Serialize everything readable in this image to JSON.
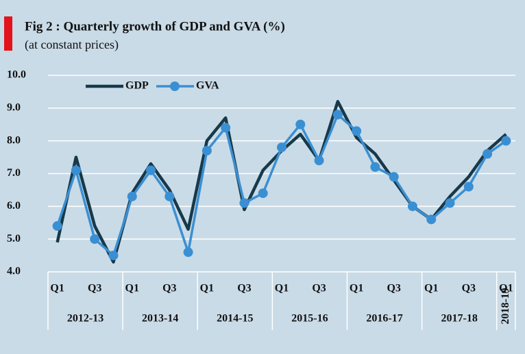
{
  "chart_data": {
    "type": "line",
    "title": "Fig 2 : Quarterly growth of GDP and GVA (%)",
    "subtitle": "(at constant prices)",
    "categories": [
      "Q1",
      null,
      "Q3",
      null,
      "Q1",
      null,
      "Q3",
      null,
      "Q1",
      null,
      "Q3",
      null,
      "Q1",
      null,
      "Q3",
      null,
      "Q1",
      null,
      "Q3",
      null,
      "Q1",
      null,
      "Q3",
      null,
      "Q1"
    ],
    "groups": [
      "2012-13",
      "2013-14",
      "2014-15",
      "2015-16",
      "2016-17",
      "2017-18",
      "2018-19"
    ],
    "series": [
      {
        "name": "GDP",
        "color": "#17394a",
        "values": [
          4.9,
          7.5,
          5.4,
          4.3,
          6.4,
          7.3,
          6.5,
          5.3,
          8.0,
          8.7,
          5.9,
          7.1,
          7.7,
          8.2,
          7.4,
          9.2,
          8.1,
          7.6,
          6.8,
          6.0,
          5.6,
          6.3,
          6.9,
          7.7,
          8.2
        ]
      },
      {
        "name": "GVA",
        "color": "#3a8fd3",
        "values": [
          5.4,
          7.1,
          5.0,
          4.5,
          6.3,
          7.1,
          6.3,
          4.6,
          7.7,
          8.4,
          6.1,
          6.4,
          7.8,
          8.5,
          7.4,
          8.8,
          8.3,
          7.2,
          6.9,
          6.0,
          5.6,
          6.1,
          6.6,
          7.6,
          8.0
        ]
      }
    ],
    "ylim": [
      4,
      10
    ],
    "yticks": [
      {
        "value": 4,
        "label": "4.0"
      },
      {
        "value": 5,
        "label": "5.0"
      },
      {
        "value": 6,
        "label": "6.0"
      },
      {
        "value": 7,
        "label": "7.0"
      },
      {
        "value": 8,
        "label": "8.0"
      },
      {
        "value": 9,
        "label": "9.0"
      },
      {
        "value": 10,
        "label": "10.0"
      }
    ],
    "grid": true
  }
}
